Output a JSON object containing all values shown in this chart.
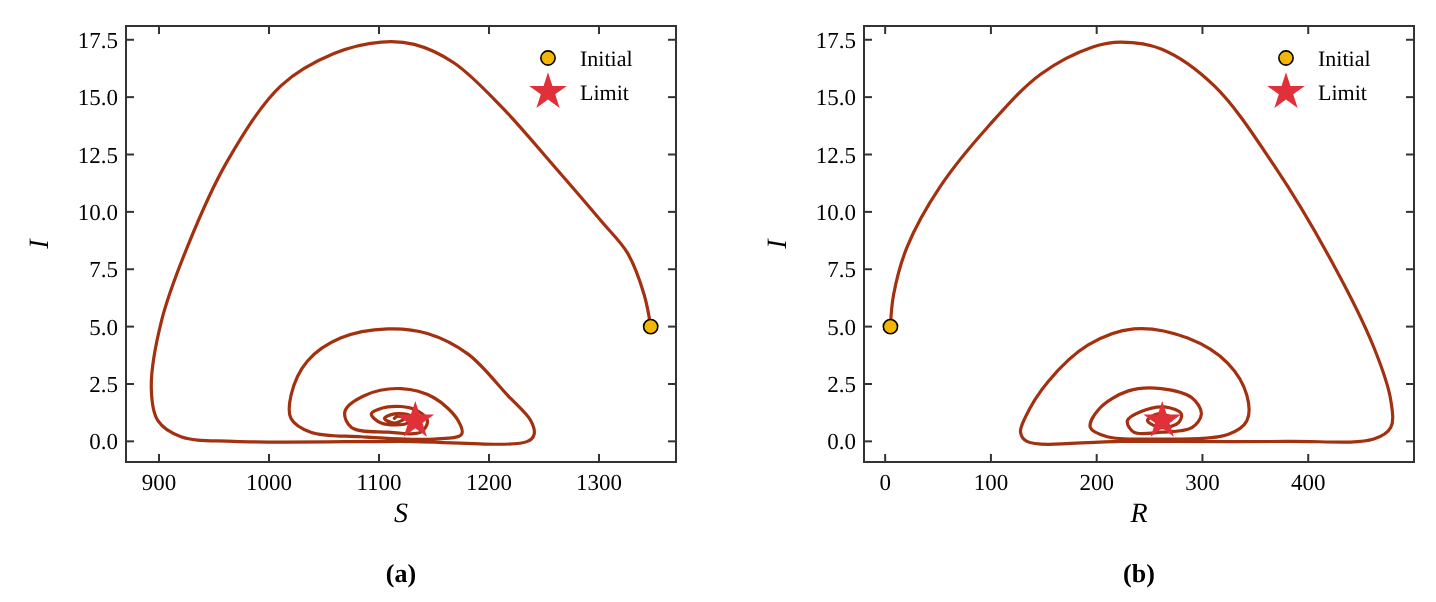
{
  "chart_data": [
    {
      "type": "line",
      "xlabel": "S",
      "ylabel": "I",
      "annotations": [
        "(a)"
      ],
      "legend": "top right",
      "xlim": [
        870,
        1370
      ],
      "ylim": [
        -0.9,
        18.1
      ],
      "xticks": [
        900,
        1000,
        1100,
        1200,
        1300
      ],
      "yticks": [
        {
          "value": 0,
          "label": "0.0"
        },
        2.5,
        {
          "value": 5,
          "label": "5.0"
        },
        7.5,
        {
          "value": 10,
          "label": "10.0"
        },
        12.5,
        {
          "value": 15,
          "label": "15.0"
        },
        17.5
      ],
      "series": [
        {
          "type": "line",
          "color": "#a3300f",
          "x": [
            1347,
            1341,
            1326,
            1302,
            1259,
            1211,
            1168,
            1132,
            1102,
            1059,
            1011,
            962,
            926,
            902,
            893,
            899,
            920,
            968,
            1120,
            1235,
            1241,
            1238,
            1217,
            1181,
            1144,
            1108,
            1065,
            1035,
            1020,
            1020,
            1038,
            1084,
            1150,
            1175,
            1172,
            1150,
            1120,
            1087,
            1069,
            1075,
            1108,
            1138,
            1144,
            1132,
            1108,
            1093,
            1102,
            1126,
            1129,
            1114,
            1105,
            1114,
            1123,
            1117,
            1114
          ],
          "values": [
            5,
            6.4,
            8.2,
            9.6,
            12,
            14.6,
            16.5,
            17.3,
            17.4,
            16.9,
            15.5,
            12.2,
            8.5,
            5.2,
            2.3,
            0.9,
            0.2,
            0,
            0,
            0,
            0.3,
            0.9,
            2.0,
            3.8,
            4.7,
            4.9,
            4.5,
            3.5,
            2.0,
            1.0,
            0.4,
            0.2,
            0.1,
            0.3,
            0.9,
            1.9,
            2.3,
            2.0,
            1.3,
            0.6,
            0.4,
            0.4,
            0.9,
            1.4,
            1.5,
            1.2,
            0.8,
            0.8,
            1.1,
            1.2,
            1.0,
            0.8,
            1.0,
            1.1,
            1.0
          ]
        },
        {
          "type": "scatter",
          "name": "Initial",
          "color": "#f2b705",
          "marker": "circle",
          "x": [
            1347
          ],
          "values": [
            5
          ]
        },
        {
          "type": "scatter",
          "name": "Limit",
          "color": "#e0303a",
          "marker": "star",
          "x": [
            1133
          ],
          "values": [
            0.9
          ]
        }
      ]
    },
    {
      "type": "line",
      "xlabel": "R",
      "ylabel": "I",
      "annotations": [
        "(b)"
      ],
      "legend": "top right",
      "xlim": [
        -20,
        500
      ],
      "ylim": [
        -0.9,
        18.1
      ],
      "xticks": [
        0,
        100,
        200,
        300,
        400
      ],
      "yticks": [
        {
          "value": 0,
          "label": "0.0"
        },
        2.5,
        {
          "value": 5,
          "label": "5.0"
        },
        7.5,
        {
          "value": 10,
          "label": "10.0"
        },
        12.5,
        {
          "value": 15,
          "label": "15.0"
        },
        17.5
      ],
      "series": [
        {
          "type": "line",
          "color": "#a3300f",
          "x": [
            5,
            8,
            21,
            52,
            97,
            147,
            197,
            223,
            261,
            311,
            368,
            425,
            462,
            478,
            478,
            462,
            380,
            223,
            134,
            128,
            132,
            154,
            192,
            235,
            286,
            324,
            342,
            342,
            324,
            254,
            210,
            194,
            202,
            230,
            261,
            290,
            299,
            290,
            261,
            235,
            229,
            242,
            264,
            280,
            277,
            261,
            248,
            258,
            271,
            264,
            258,
            262
          ],
          "values": [
            5,
            6.4,
            8.5,
            11.1,
            13.7,
            16,
            17.2,
            17.4,
            17.1,
            15.5,
            12,
            7.6,
            4.1,
            1.8,
            0.6,
            0.1,
            0,
            0,
            0,
            0.4,
            1.0,
            2.6,
            4.2,
            4.9,
            4.5,
            3.4,
            2.0,
            0.9,
            0.3,
            0.1,
            0.2,
            0.6,
            1.4,
            2.2,
            2.3,
            1.9,
            1.2,
            0.6,
            0.4,
            0.4,
            0.9,
            1.3,
            1.5,
            1.2,
            0.8,
            0.6,
            0.9,
            1.2,
            1.0,
            0.8,
            1.0,
            1.0
          ]
        },
        {
          "type": "scatter",
          "name": "Initial",
          "color": "#f2b705",
          "marker": "circle",
          "x": [
            5
          ],
          "values": [
            5
          ]
        },
        {
          "type": "scatter",
          "name": "Limit",
          "color": "#e0303a",
          "marker": "star",
          "x": [
            262
          ],
          "values": [
            0.9
          ]
        }
      ]
    }
  ]
}
